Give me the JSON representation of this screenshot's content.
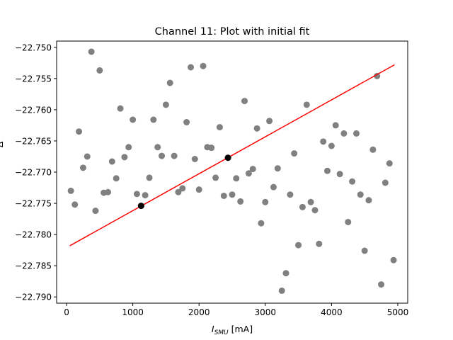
{
  "chart_data": {
    "type": "scatter",
    "title": "Channel 11: Plot with initial fit",
    "xlabel": "I",
    "xlabel_sub": "SMU",
    "xlabel_unit": " [mA]",
    "ylabel": "Δ",
    "xlim": [
      -150,
      5150
    ],
    "ylim": [
      -22.791,
      -22.749
    ],
    "xticks": [
      0,
      1000,
      2000,
      3000,
      4000,
      5000
    ],
    "xtick_labels": [
      "0",
      "1000",
      "2000",
      "3000",
      "4000",
      "5000"
    ],
    "yticks": [
      -22.79,
      -22.785,
      -22.78,
      -22.775,
      -22.77,
      -22.765,
      -22.76,
      -22.755,
      -22.75
    ],
    "ytick_labels": [
      "−22.790",
      "−22.785",
      "−22.780",
      "−22.775",
      "−22.770",
      "−22.765",
      "−22.760",
      "−22.755",
      "−22.750"
    ],
    "grid": false,
    "colors": {
      "data": "#808080",
      "fit_points": "#000000",
      "fit_line": "#ff0000"
    },
    "series": [
      {
        "marker": "circle",
        "color": "#808080",
        "points": [
          [
            65,
            -22.773
          ],
          [
            125,
            -22.7752
          ],
          [
            187,
            -22.7635
          ],
          [
            250,
            -22.7693
          ],
          [
            312,
            -22.7675
          ],
          [
            375,
            -22.7507
          ],
          [
            437,
            -22.7762
          ],
          [
            500,
            -22.7537
          ],
          [
            562,
            -22.7733
          ],
          [
            625,
            -22.7732
          ],
          [
            687,
            -22.7683
          ],
          [
            750,
            -22.771
          ],
          [
            812,
            -22.7598
          ],
          [
            875,
            -22.7676
          ],
          [
            937,
            -22.766
          ],
          [
            1000,
            -22.7616
          ],
          [
            1062,
            -22.7735
          ],
          [
            1125,
            -22.7754
          ],
          [
            1187,
            -22.7737
          ],
          [
            1250,
            -22.7709
          ],
          [
            1312,
            -22.7616
          ],
          [
            1375,
            -22.766
          ],
          [
            1437,
            -22.7674
          ],
          [
            1500,
            -22.7592
          ],
          [
            1562,
            -22.7557
          ],
          [
            1625,
            -22.7674
          ],
          [
            1687,
            -22.7732
          ],
          [
            1750,
            -22.7726
          ],
          [
            1812,
            -22.762
          ],
          [
            1875,
            -22.7532
          ],
          [
            1937,
            -22.7679
          ],
          [
            2000,
            -22.7728
          ],
          [
            2062,
            -22.753
          ],
          [
            2125,
            -22.766
          ],
          [
            2187,
            -22.7661
          ],
          [
            2250,
            -22.7709
          ],
          [
            2312,
            -22.7628
          ],
          [
            2375,
            -22.7738
          ],
          [
            2437,
            -22.7677
          ],
          [
            2500,
            -22.7736
          ],
          [
            2562,
            -22.771
          ],
          [
            2625,
            -22.7747
          ],
          [
            2687,
            -22.7586
          ],
          [
            2750,
            -22.7702
          ],
          [
            2812,
            -22.7695
          ],
          [
            2875,
            -22.763
          ],
          [
            2937,
            -22.7782
          ],
          [
            3000,
            -22.7748
          ],
          [
            3062,
            -22.7618
          ],
          [
            3125,
            -22.7724
          ],
          [
            3187,
            -22.7694
          ],
          [
            3250,
            -22.789
          ],
          [
            3312,
            -22.7862
          ],
          [
            3375,
            -22.7736
          ],
          [
            3437,
            -22.767
          ],
          [
            3500,
            -22.7817
          ],
          [
            3562,
            -22.7756
          ],
          [
            3625,
            -22.7592
          ],
          [
            3687,
            -22.7748
          ],
          [
            3750,
            -22.7761
          ],
          [
            3812,
            -22.7815
          ],
          [
            3875,
            -22.7651
          ],
          [
            3937,
            -22.7698
          ],
          [
            4000,
            -22.7658
          ],
          [
            4062,
            -22.7625
          ],
          [
            4125,
            -22.7703
          ],
          [
            4187,
            -22.7638
          ],
          [
            4250,
            -22.778
          ],
          [
            4312,
            -22.7715
          ],
          [
            4375,
            -22.7638
          ],
          [
            4437,
            -22.7736
          ],
          [
            4500,
            -22.7826
          ],
          [
            4562,
            -22.7745
          ],
          [
            4625,
            -22.7664
          ],
          [
            4687,
            -22.7546
          ],
          [
            4750,
            -22.788
          ],
          [
            4812,
            -22.7717
          ],
          [
            4875,
            -22.7686
          ],
          [
            4937,
            -22.7841
          ]
        ]
      },
      {
        "marker": "circle",
        "color": "#000000",
        "points": [
          [
            1125,
            -22.7754
          ],
          [
            2437,
            -22.7677
          ]
        ]
      },
      {
        "marker": "line",
        "color": "#ff0000",
        "points": [
          [
            50,
            -22.7818
          ],
          [
            4950,
            -22.7528
          ]
        ]
      }
    ]
  }
}
